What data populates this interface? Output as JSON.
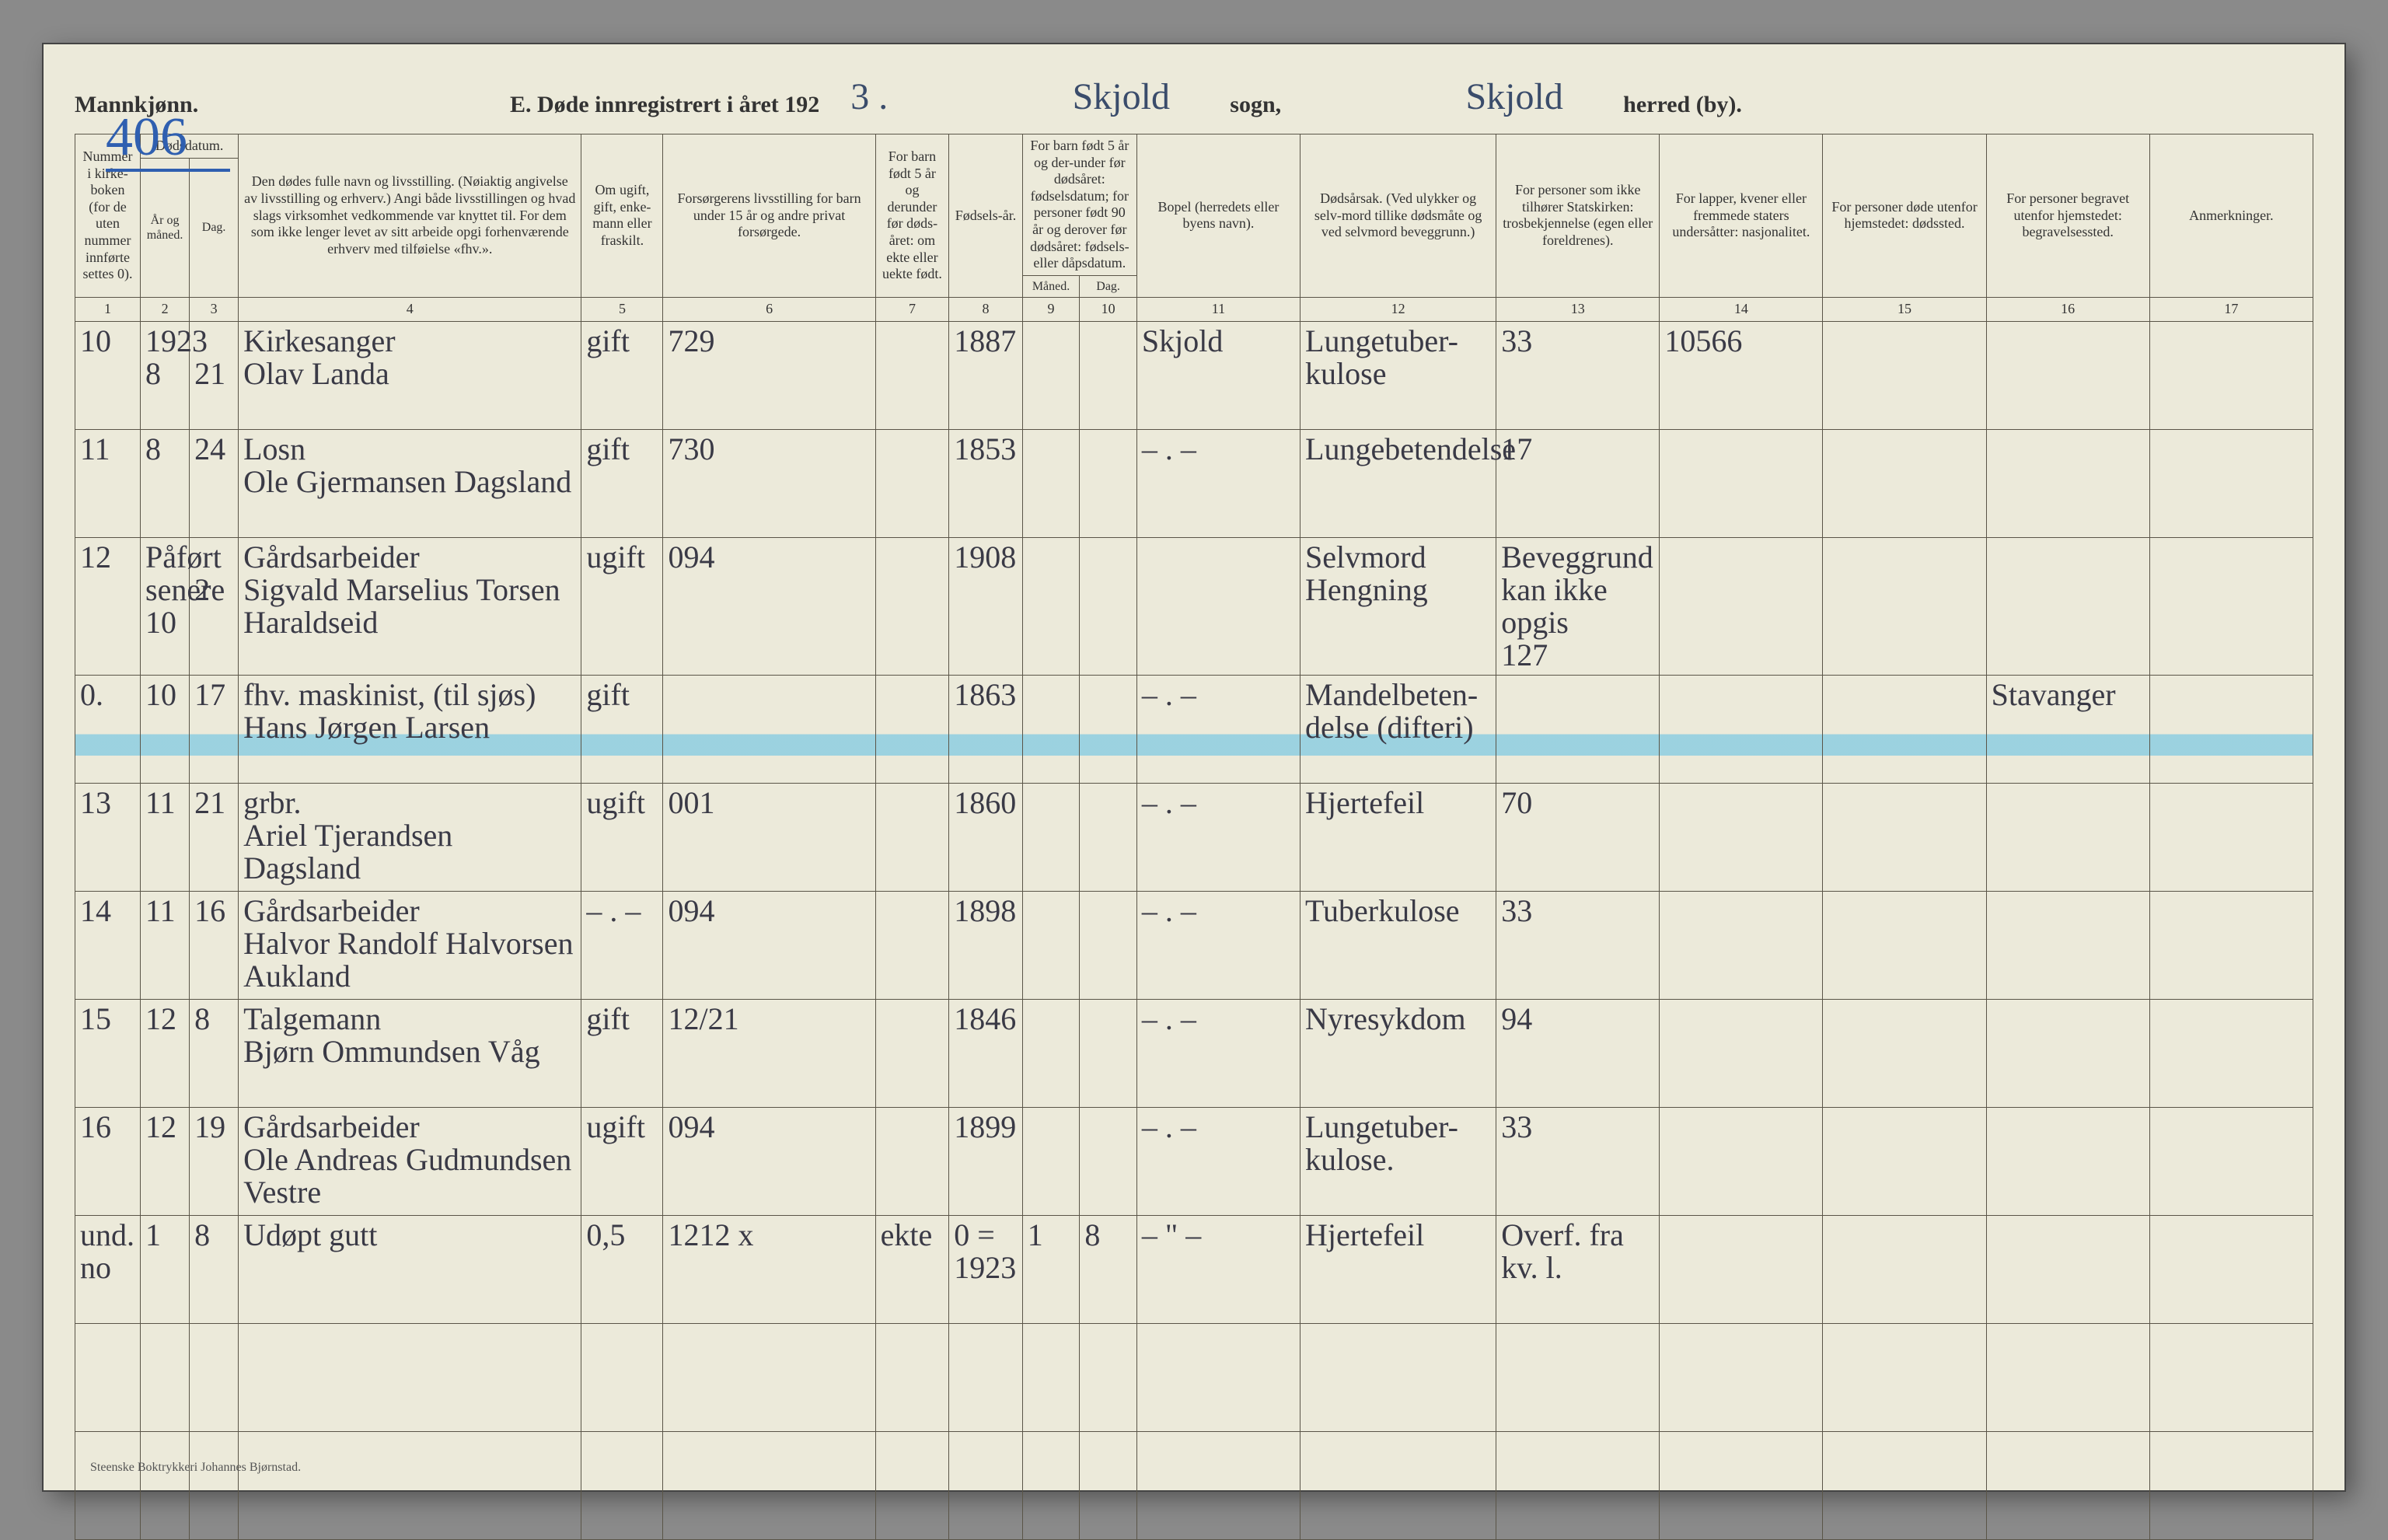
{
  "colors": {
    "paper": "#eceada",
    "ink": "#333",
    "handwriting": "#3a3a46",
    "blue": "#2f5fb0",
    "highlight": "#5abee6",
    "rule": "#5a5548"
  },
  "typography": {
    "printed_family": "Times New Roman",
    "hand_family": "Brush Script MT",
    "header_fontsize": 18,
    "colnum_fontsize": 16,
    "cell_fontsize": 40,
    "title_fontsize": 32,
    "pageno_fontsize": 70
  },
  "page": {
    "gender_label": "Mannkjønn.",
    "number": "406",
    "title_prefix": "E.  Døde innregistrert i året 192",
    "year_suffix": "3 .",
    "sogn_value": "Skjold",
    "sogn_label": "sogn,",
    "herred_value": "Skjold",
    "herred_label": "herred (by)."
  },
  "footer": "Steenske Boktrykkeri Johannes Bjørnstad.",
  "headers": {
    "c1": "Nummer i kirke-boken (for de uten nummer innførte settes 0).",
    "dods": "Dødsdatum.",
    "c2": "År og måned.",
    "c3": "Dag.",
    "c4": "Den dødes fulle navn og livsstilling. (Nøiaktig angivelse av livsstilling og erhverv.) Angi både livsstillingen og hvad slags virksomhet vedkommende var knyttet til. For dem som ikke lenger levet av sitt arbeide opgi forhenværende erhverv med tilføielse «fhv.».",
    "c5": "Om ugift, gift, enke-mann eller fraskilt.",
    "c6": "Forsørgerens livsstilling for barn under 15 år og andre privat forsørgede.",
    "c7": "For barn født 5 år og derunder før døds-året: om ekte eller uekte født.",
    "c8": "Fødsels-år.",
    "c9_10": "For barn født 5 år og der-under før dødsåret: fødselsdatum; for personer født 90 år og derover før dødsåret: fødsels- eller dåpsdatum.",
    "c9": "Måned.",
    "c10": "Dag.",
    "c11": "Bopel (herredets eller byens navn).",
    "c12": "Dødsårsak. (Ved ulykker og selv-mord tillike dødsmåte og ved selvmord beveggrunn.)",
    "c13": "For personer som ikke tilhører Statskirken: trosbekjennelse (egen eller foreldrenes).",
    "c14": "For lapper, kvener eller fremmede staters undersåtter: nasjonalitet.",
    "c15": "For personer døde utenfor hjemstedet: dødssted.",
    "c16": "For personer begravet utenfor hjemstedet: begravelsessted.",
    "c17": "Anmerkninger."
  },
  "colnums": [
    "1",
    "2",
    "3",
    "4",
    "5",
    "6",
    "7",
    "8",
    "9",
    "10",
    "11",
    "12",
    "13",
    "14",
    "15",
    "16",
    "17"
  ],
  "rows": [
    {
      "c1": "10",
      "c2": "1923\n8",
      "c3": "\n21",
      "c4": "Kirkesanger\nOlav Landa",
      "c5": "gift",
      "c6": "729",
      "c7": "",
      "c8": "1887",
      "c9": "",
      "c10": "",
      "c11": "Skjold",
      "c12": "Lungetuber-\nkulose",
      "c13": "33",
      "c14": "10566",
      "c15": "",
      "c16": "",
      "c17": "",
      "hl": false
    },
    {
      "c1": "11",
      "c2": "8",
      "c3": "24",
      "c4": "Losn\nOle Gjermansen Dagsland",
      "c5": "gift",
      "c6": "730",
      "c7": "",
      "c8": "1853",
      "c9": "",
      "c10": "",
      "c11": "– . –",
      "c12": "Lungebetendelse",
      "c13": "17",
      "c14": "",
      "c15": "",
      "c16": "",
      "c17": "",
      "hl": false
    },
    {
      "c1": "12",
      "c2": "Påført senere\n10",
      "c3": "\n2",
      "c4": "Gårdsarbeider\nSigvald Marselius Torsen Haraldseid",
      "c5": "ugift",
      "c6": "094",
      "c7": "",
      "c8": "1908",
      "c9": "",
      "c10": "",
      "c11": "",
      "c12": "Selvmord\nHengning",
      "c13": "Beveggrund kan ikke opgis\n127",
      "c14": "",
      "c15": "",
      "c16": "",
      "c17": "",
      "hl": false
    },
    {
      "c1": "0.",
      "c2": "10",
      "c3": "17",
      "c4": "fhv. maskinist, (til sjøs)\nHans Jørgen Larsen",
      "c5": "gift",
      "c6": "",
      "c7": "",
      "c8": "1863",
      "c9": "",
      "c10": "",
      "c11": "– . –",
      "c12": "Mandelbeten-\ndelse (difteri)",
      "c13": "",
      "c14": "",
      "c15": "",
      "c16": "Stavanger",
      "c17": "",
      "hl": true
    },
    {
      "c1": "13",
      "c2": "11",
      "c3": "21",
      "c4": "grbr.\nAriel Tjerandsen Dagsland",
      "c5": "ugift",
      "c6": "001",
      "c7": "",
      "c8": "1860",
      "c9": "",
      "c10": "",
      "c11": "– . –",
      "c12": "Hjertefeil",
      "c13": "70",
      "c14": "",
      "c15": "",
      "c16": "",
      "c17": "",
      "hl": false
    },
    {
      "c1": "14",
      "c2": "11",
      "c3": "16",
      "c4": "Gårdsarbeider\nHalvor Randolf Halvorsen Aukland",
      "c5": "– . –",
      "c6": "094",
      "c7": "",
      "c8": "1898",
      "c9": "",
      "c10": "",
      "c11": "– . –",
      "c12": "Tuberkulose",
      "c13": "33",
      "c14": "",
      "c15": "",
      "c16": "",
      "c17": "",
      "hl": false
    },
    {
      "c1": "15",
      "c2": "12",
      "c3": "8",
      "c4": "Talgemann\nBjørn Ommundsen Våg",
      "c5": "gift",
      "c6": "12/21",
      "c7": "",
      "c8": "1846",
      "c9": "",
      "c10": "",
      "c11": "– . –",
      "c12": "Nyresykdom",
      "c13": "94",
      "c14": "",
      "c15": "",
      "c16": "",
      "c17": "",
      "hl": false
    },
    {
      "c1": "16",
      "c2": "12",
      "c3": "19",
      "c4": "Gårdsarbeider\nOle Andreas Gudmundsen Vestre",
      "c5": "ugift",
      "c6": "094",
      "c7": "",
      "c8": "1899",
      "c9": "",
      "c10": "",
      "c11": "– . –",
      "c12": "Lungetuber-\nkulose.",
      "c13": "33",
      "c14": "",
      "c15": "",
      "c16": "",
      "c17": "",
      "hl": false
    },
    {
      "c1": "und. no",
      "c1_blue": true,
      "c2": "1",
      "c3": "8",
      "c4": "Udøpt gutt",
      "c5": "0,5",
      "c6": "1212 x",
      "c7": "ekte",
      "c8": "0 =\n1923",
      "c9": "1",
      "c10": "8",
      "c11": "– \" –",
      "c12": "Hjertefeil",
      "c13": "Overf. fra kv. l.",
      "c14": "",
      "c15": "",
      "c16": "",
      "c17": "",
      "hl": false
    },
    {
      "c1": "",
      "c2": "",
      "c3": "",
      "c4": "",
      "c5": "",
      "c6": "",
      "c7": "",
      "c8": "",
      "c9": "",
      "c10": "",
      "c11": "",
      "c12": "",
      "c13": "",
      "c14": "",
      "c15": "",
      "c16": "",
      "c17": "",
      "hl": false
    },
    {
      "c1": "",
      "c2": "",
      "c3": "",
      "c4": "",
      "c5": "",
      "c6": "",
      "c7": "",
      "c8": "",
      "c9": "",
      "c10": "",
      "c11": "",
      "c12": "",
      "c13": "",
      "c14": "",
      "c15": "",
      "c16": "",
      "c17": "",
      "hl": false
    }
  ]
}
